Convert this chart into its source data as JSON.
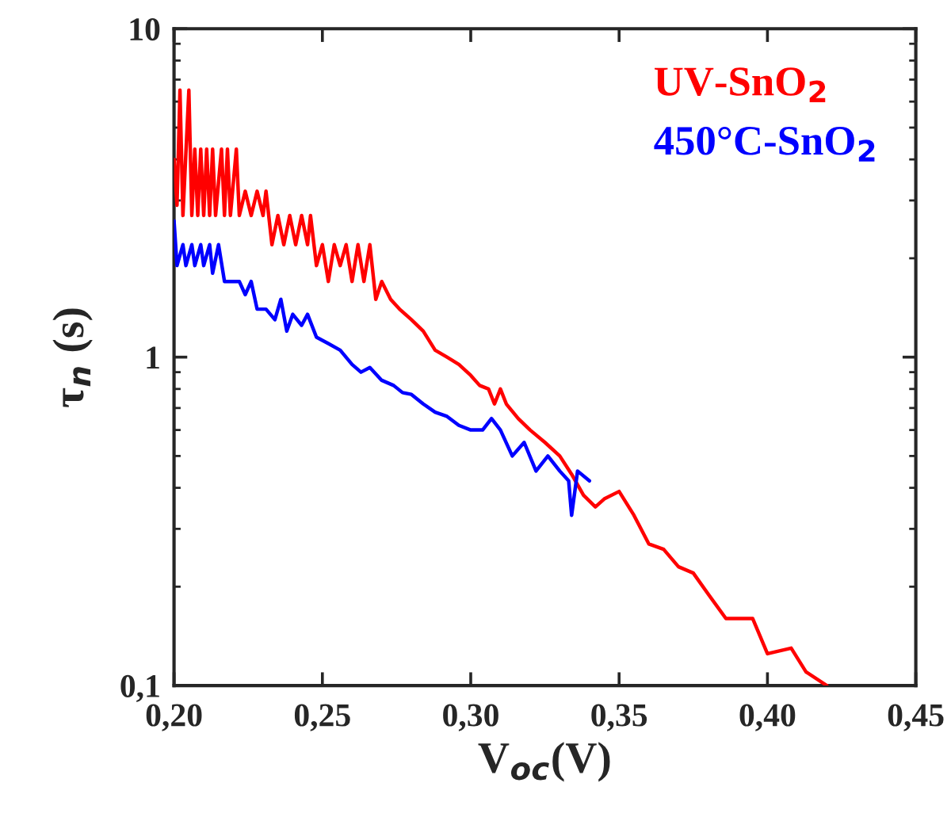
{
  "chart_data": {
    "type": "line",
    "xlabel": "V$_{oc}$(V)",
    "ylabel": "τ$_{n}$ (s)",
    "log": "y",
    "grid": false,
    "legend": "top right",
    "marker": "none",
    "line_style": "solid",
    "xlim": [
      0.2,
      0.45
    ],
    "ylim": [
      0.1,
      10
    ],
    "xticks": [
      {
        "value": 0.2,
        "label": "0,20"
      },
      {
        "value": 0.25,
        "label": "0,25"
      },
      {
        "value": 0.3,
        "label": "0,30"
      },
      {
        "value": 0.35,
        "label": "0,35"
      },
      {
        "value": 0.4,
        "label": "0,40"
      },
      {
        "value": 0.45,
        "label": "0,45"
      }
    ],
    "yticks": [
      {
        "value": 0.1,
        "label": "0,1"
      },
      1,
      10
    ],
    "series": [
      {
        "name": "UV-SnO$_{2}$",
        "color": "#ff0000",
        "x": [
          0.2,
          0.201,
          0.202,
          0.203,
          0.205,
          0.206,
          0.207,
          0.208,
          0.209,
          0.21,
          0.211,
          0.212,
          0.213,
          0.214,
          0.216,
          0.217,
          0.218,
          0.219,
          0.221,
          0.222,
          0.224,
          0.226,
          0.228,
          0.23,
          0.231,
          0.233,
          0.235,
          0.237,
          0.239,
          0.241,
          0.243,
          0.245,
          0.246,
          0.248,
          0.25,
          0.252,
          0.254,
          0.256,
          0.258,
          0.26,
          0.262,
          0.264,
          0.266,
          0.268,
          0.27,
          0.273,
          0.276,
          0.28,
          0.284,
          0.288,
          0.292,
          0.296,
          0.3,
          0.303,
          0.306,
          0.308,
          0.31,
          0.312,
          0.316,
          0.32,
          0.325,
          0.33,
          0.334,
          0.338,
          0.342,
          0.345,
          0.35,
          0.355,
          0.36,
          0.365,
          0.37,
          0.375,
          0.38,
          0.386,
          0.395,
          0.4,
          0.408,
          0.413,
          0.42
        ],
        "values": [
          4.0,
          2.9,
          6.5,
          2.7,
          6.5,
          2.7,
          4.3,
          2.7,
          4.3,
          2.7,
          4.3,
          2.7,
          4.3,
          2.7,
          4.3,
          2.7,
          4.3,
          2.7,
          4.3,
          2.7,
          3.2,
          2.7,
          3.2,
          2.7,
          3.2,
          2.2,
          2.7,
          2.2,
          2.7,
          2.2,
          2.7,
          2.2,
          2.7,
          1.9,
          2.2,
          1.7,
          2.2,
          1.9,
          2.2,
          1.7,
          2.2,
          1.7,
          2.2,
          1.5,
          1.7,
          1.5,
          1.4,
          1.3,
          1.2,
          1.05,
          1.0,
          0.95,
          0.88,
          0.82,
          0.8,
          0.72,
          0.8,
          0.72,
          0.65,
          0.6,
          0.55,
          0.5,
          0.44,
          0.38,
          0.35,
          0.37,
          0.39,
          0.33,
          0.27,
          0.26,
          0.23,
          0.22,
          0.19,
          0.16,
          0.16,
          0.125,
          0.13,
          0.11,
          0.1
        ]
      },
      {
        "name": "450°C-SnO$_{2}$",
        "color": "#0000ff",
        "x": [
          0.2,
          0.201,
          0.203,
          0.204,
          0.206,
          0.207,
          0.209,
          0.21,
          0.212,
          0.213,
          0.215,
          0.217,
          0.222,
          0.224,
          0.226,
          0.228,
          0.231,
          0.234,
          0.236,
          0.238,
          0.24,
          0.243,
          0.245,
          0.248,
          0.252,
          0.256,
          0.26,
          0.263,
          0.266,
          0.27,
          0.274,
          0.277,
          0.28,
          0.284,
          0.288,
          0.292,
          0.296,
          0.3,
          0.304,
          0.307,
          0.31,
          0.314,
          0.318,
          0.322,
          0.326,
          0.33,
          0.333,
          0.334,
          0.336,
          0.34
        ],
        "values": [
          2.6,
          1.9,
          2.2,
          1.9,
          2.2,
          1.9,
          2.2,
          1.9,
          2.2,
          1.8,
          2.2,
          1.7,
          1.7,
          1.55,
          1.7,
          1.4,
          1.4,
          1.3,
          1.5,
          1.2,
          1.35,
          1.25,
          1.35,
          1.15,
          1.1,
          1.05,
          0.95,
          0.9,
          0.93,
          0.85,
          0.82,
          0.78,
          0.77,
          0.72,
          0.68,
          0.66,
          0.62,
          0.6,
          0.6,
          0.65,
          0.6,
          0.5,
          0.55,
          0.45,
          0.5,
          0.45,
          0.42,
          0.33,
          0.45,
          0.42
        ]
      }
    ]
  }
}
